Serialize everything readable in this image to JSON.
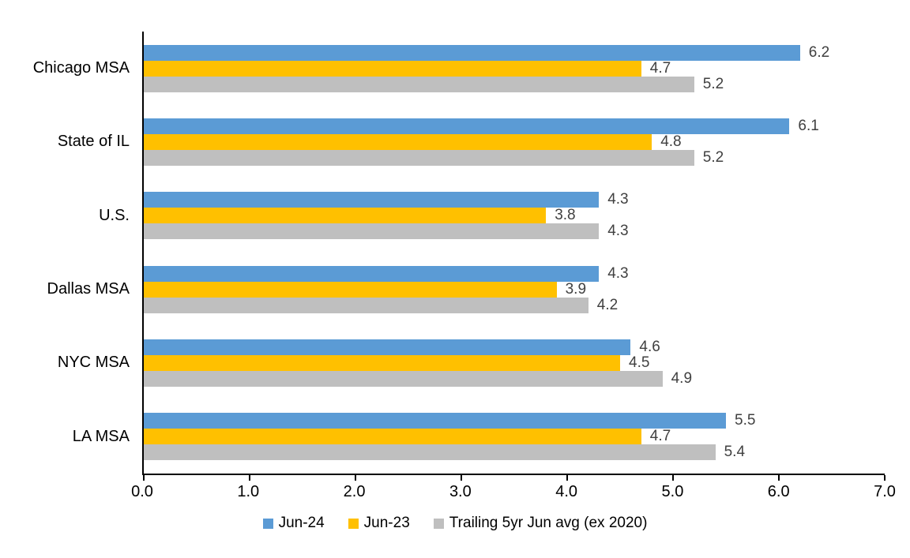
{
  "chart_data": {
    "type": "bar",
    "orientation": "horizontal",
    "title": "",
    "categories": [
      "Chicago MSA",
      "State of IL",
      "U.S.",
      "Dallas MSA",
      "NYC MSA",
      "LA MSA"
    ],
    "series": [
      {
        "name": "Jun-24",
        "color": "#5B9BD5",
        "values": [
          6.2,
          6.1,
          4.3,
          4.3,
          4.6,
          5.5
        ]
      },
      {
        "name": "Jun-23",
        "color": "#FFC000",
        "values": [
          4.7,
          4.8,
          3.8,
          3.9,
          4.5,
          4.7
        ]
      },
      {
        "name": "Trailing 5yr Jun avg (ex 2020)",
        "color": "#BFBFBF",
        "values": [
          5.2,
          5.2,
          4.3,
          4.2,
          4.9,
          5.4
        ]
      }
    ],
    "xlim": [
      0,
      7
    ],
    "xticks": [
      "0.0",
      "1.0",
      "2.0",
      "3.0",
      "4.0",
      "5.0",
      "6.0",
      "7.0"
    ],
    "legend_position": "bottom",
    "grid": false,
    "data_labels_shown": true,
    "colors": {
      "axis": "#000000",
      "data_label": "#404040",
      "category_label": "#000000",
      "tick_label": "#000000",
      "background": "#ffffff"
    }
  }
}
